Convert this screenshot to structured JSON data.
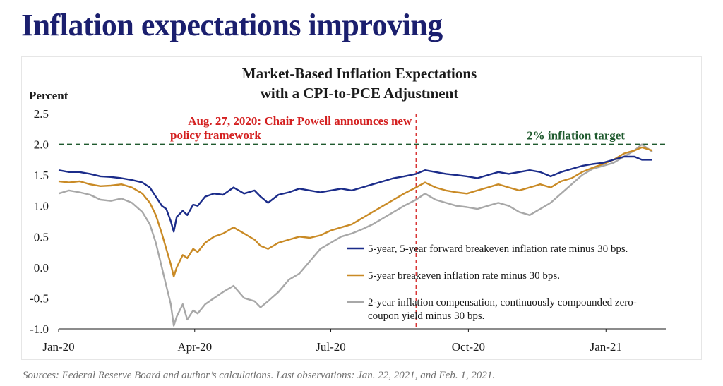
{
  "page": {
    "title": "Inflation expectations improving",
    "source": "Sources: Federal Reserve Board and author’s calculations. Last observations: Jan. 22, 2021, and Feb. 1, 2021."
  },
  "chart_data": {
    "type": "line",
    "title": "Market-Based Inflation Expectations",
    "subtitle": "with a CPI-to-PCE Adjustment",
    "ylabel": "Percent",
    "xlabel": "",
    "ylim": [
      -1.0,
      2.5
    ],
    "yticks": [
      "2.5",
      "2.0",
      "1.5",
      "1.0",
      "0.5",
      "0.0",
      "-0.5",
      "-1.0"
    ],
    "xlim": [
      "2020-01-01",
      "2021-02-10"
    ],
    "xticks": [
      {
        "label": "Jan-20",
        "date": "2020-01-01"
      },
      {
        "label": "Apr-20",
        "date": "2020-04-01"
      },
      {
        "label": "Jul-20",
        "date": "2020-07-01"
      },
      {
        "label": "Oct-20",
        "date": "2020-10-01"
      },
      {
        "label": "Jan-21",
        "date": "2021-01-01"
      }
    ],
    "grid": false,
    "legend_position": "bottom-right",
    "reference_lines": [
      {
        "kind": "horizontal",
        "y": 2.0,
        "label": "2% inflation target",
        "color": "#1f5a2e",
        "style": "dashed"
      },
      {
        "kind": "vertical",
        "x": "2020-08-27",
        "label_line1": "Aug. 27, 2020: Chair Powell announces new",
        "label_line2": "policy framework",
        "color": "#d42020",
        "style": "dashed"
      }
    ],
    "series": [
      {
        "name": "5-year, 5-year forward breakeven inflation rate minus 30 bps.",
        "color": "#1b2c8a",
        "points": [
          [
            "2020-01-01",
            1.58
          ],
          [
            "2020-01-08",
            1.55
          ],
          [
            "2020-01-15",
            1.55
          ],
          [
            "2020-01-22",
            1.52
          ],
          [
            "2020-01-29",
            1.48
          ],
          [
            "2020-02-05",
            1.47
          ],
          [
            "2020-02-12",
            1.45
          ],
          [
            "2020-02-19",
            1.42
          ],
          [
            "2020-02-26",
            1.38
          ],
          [
            "2020-03-02",
            1.3
          ],
          [
            "2020-03-06",
            1.15
          ],
          [
            "2020-03-10",
            1.0
          ],
          [
            "2020-03-13",
            0.95
          ],
          [
            "2020-03-16",
            0.75
          ],
          [
            "2020-03-18",
            0.58
          ],
          [
            "2020-03-20",
            0.82
          ],
          [
            "2020-03-24",
            0.92
          ],
          [
            "2020-03-27",
            0.85
          ],
          [
            "2020-03-31",
            1.02
          ],
          [
            "2020-04-03",
            1.0
          ],
          [
            "2020-04-08",
            1.15
          ],
          [
            "2020-04-14",
            1.2
          ],
          [
            "2020-04-20",
            1.18
          ],
          [
            "2020-04-27",
            1.3
          ],
          [
            "2020-05-04",
            1.2
          ],
          [
            "2020-05-11",
            1.25
          ],
          [
            "2020-05-15",
            1.15
          ],
          [
            "2020-05-20",
            1.05
          ],
          [
            "2020-05-27",
            1.18
          ],
          [
            "2020-06-03",
            1.22
          ],
          [
            "2020-06-10",
            1.28
          ],
          [
            "2020-06-17",
            1.25
          ],
          [
            "2020-06-24",
            1.22
          ],
          [
            "2020-07-01",
            1.25
          ],
          [
            "2020-07-08",
            1.28
          ],
          [
            "2020-07-15",
            1.25
          ],
          [
            "2020-07-22",
            1.3
          ],
          [
            "2020-07-29",
            1.35
          ],
          [
            "2020-08-05",
            1.4
          ],
          [
            "2020-08-12",
            1.45
          ],
          [
            "2020-08-19",
            1.48
          ],
          [
            "2020-08-27",
            1.52
          ],
          [
            "2020-09-02",
            1.58
          ],
          [
            "2020-09-09",
            1.55
          ],
          [
            "2020-09-16",
            1.52
          ],
          [
            "2020-09-23",
            1.5
          ],
          [
            "2020-09-30",
            1.48
          ],
          [
            "2020-10-07",
            1.45
          ],
          [
            "2020-10-14",
            1.5
          ],
          [
            "2020-10-21",
            1.55
          ],
          [
            "2020-10-28",
            1.52
          ],
          [
            "2020-11-04",
            1.55
          ],
          [
            "2020-11-11",
            1.58
          ],
          [
            "2020-11-18",
            1.55
          ],
          [
            "2020-11-25",
            1.48
          ],
          [
            "2020-12-02",
            1.55
          ],
          [
            "2020-12-09",
            1.6
          ],
          [
            "2020-12-16",
            1.65
          ],
          [
            "2020-12-23",
            1.68
          ],
          [
            "2020-12-30",
            1.7
          ],
          [
            "2021-01-06",
            1.75
          ],
          [
            "2021-01-13",
            1.8
          ],
          [
            "2021-01-20",
            1.8
          ],
          [
            "2021-01-25",
            1.75
          ],
          [
            "2021-02-01",
            1.75
          ]
        ]
      },
      {
        "name": "5-year breakeven inflation rate minus 30 bps.",
        "color": "#c98a25",
        "points": [
          [
            "2020-01-01",
            1.4
          ],
          [
            "2020-01-08",
            1.38
          ],
          [
            "2020-01-15",
            1.4
          ],
          [
            "2020-01-22",
            1.35
          ],
          [
            "2020-01-29",
            1.32
          ],
          [
            "2020-02-05",
            1.33
          ],
          [
            "2020-02-12",
            1.35
          ],
          [
            "2020-02-19",
            1.3
          ],
          [
            "2020-02-26",
            1.2
          ],
          [
            "2020-03-02",
            1.05
          ],
          [
            "2020-03-06",
            0.85
          ],
          [
            "2020-03-10",
            0.55
          ],
          [
            "2020-03-13",
            0.3
          ],
          [
            "2020-03-16",
            0.05
          ],
          [
            "2020-03-18",
            -0.15
          ],
          [
            "2020-03-20",
            0.0
          ],
          [
            "2020-03-24",
            0.2
          ],
          [
            "2020-03-27",
            0.15
          ],
          [
            "2020-03-31",
            0.3
          ],
          [
            "2020-04-03",
            0.25
          ],
          [
            "2020-04-08",
            0.4
          ],
          [
            "2020-04-14",
            0.5
          ],
          [
            "2020-04-20",
            0.55
          ],
          [
            "2020-04-27",
            0.65
          ],
          [
            "2020-05-04",
            0.55
          ],
          [
            "2020-05-11",
            0.45
          ],
          [
            "2020-05-15",
            0.35
          ],
          [
            "2020-05-20",
            0.3
          ],
          [
            "2020-05-27",
            0.4
          ],
          [
            "2020-06-03",
            0.45
          ],
          [
            "2020-06-10",
            0.5
          ],
          [
            "2020-06-17",
            0.48
          ],
          [
            "2020-06-24",
            0.52
          ],
          [
            "2020-07-01",
            0.6
          ],
          [
            "2020-07-08",
            0.65
          ],
          [
            "2020-07-15",
            0.7
          ],
          [
            "2020-07-22",
            0.8
          ],
          [
            "2020-07-29",
            0.9
          ],
          [
            "2020-08-05",
            1.0
          ],
          [
            "2020-08-12",
            1.1
          ],
          [
            "2020-08-19",
            1.2
          ],
          [
            "2020-08-27",
            1.3
          ],
          [
            "2020-09-02",
            1.38
          ],
          [
            "2020-09-09",
            1.3
          ],
          [
            "2020-09-16",
            1.25
          ],
          [
            "2020-09-23",
            1.22
          ],
          [
            "2020-09-30",
            1.2
          ],
          [
            "2020-10-07",
            1.25
          ],
          [
            "2020-10-14",
            1.3
          ],
          [
            "2020-10-21",
            1.35
          ],
          [
            "2020-10-28",
            1.3
          ],
          [
            "2020-11-04",
            1.25
          ],
          [
            "2020-11-11",
            1.3
          ],
          [
            "2020-11-18",
            1.35
          ],
          [
            "2020-11-25",
            1.3
          ],
          [
            "2020-12-02",
            1.4
          ],
          [
            "2020-12-09",
            1.45
          ],
          [
            "2020-12-16",
            1.55
          ],
          [
            "2020-12-23",
            1.62
          ],
          [
            "2020-12-30",
            1.68
          ],
          [
            "2021-01-06",
            1.75
          ],
          [
            "2021-01-13",
            1.85
          ],
          [
            "2021-01-20",
            1.9
          ],
          [
            "2021-01-25",
            1.95
          ],
          [
            "2021-02-01",
            1.9
          ]
        ]
      },
      {
        "name": "2-year inflation compensation, continuously compounded zero-coupon yield minus 30 bps.",
        "label_line1": "2-year inflation compensation, continuously compounded zero-",
        "label_line2": "coupon yield minus 30 bps.",
        "color": "#a8a8a8",
        "points": [
          [
            "2020-01-01",
            1.2
          ],
          [
            "2020-01-08",
            1.25
          ],
          [
            "2020-01-15",
            1.22
          ],
          [
            "2020-01-22",
            1.18
          ],
          [
            "2020-01-29",
            1.1
          ],
          [
            "2020-02-05",
            1.08
          ],
          [
            "2020-02-12",
            1.12
          ],
          [
            "2020-02-19",
            1.05
          ],
          [
            "2020-02-26",
            0.9
          ],
          [
            "2020-03-02",
            0.7
          ],
          [
            "2020-03-06",
            0.4
          ],
          [
            "2020-03-10",
            0.0
          ],
          [
            "2020-03-13",
            -0.3
          ],
          [
            "2020-03-16",
            -0.6
          ],
          [
            "2020-03-18",
            -0.95
          ],
          [
            "2020-03-20",
            -0.8
          ],
          [
            "2020-03-24",
            -0.6
          ],
          [
            "2020-03-27",
            -0.85
          ],
          [
            "2020-03-31",
            -0.7
          ],
          [
            "2020-04-03",
            -0.75
          ],
          [
            "2020-04-08",
            -0.6
          ],
          [
            "2020-04-14",
            -0.5
          ],
          [
            "2020-04-20",
            -0.4
          ],
          [
            "2020-04-27",
            -0.3
          ],
          [
            "2020-05-04",
            -0.5
          ],
          [
            "2020-05-11",
            -0.55
          ],
          [
            "2020-05-15",
            -0.65
          ],
          [
            "2020-05-20",
            -0.55
          ],
          [
            "2020-05-27",
            -0.4
          ],
          [
            "2020-06-03",
            -0.2
          ],
          [
            "2020-06-10",
            -0.1
          ],
          [
            "2020-06-17",
            0.1
          ],
          [
            "2020-06-24",
            0.3
          ],
          [
            "2020-07-01",
            0.4
          ],
          [
            "2020-07-08",
            0.5
          ],
          [
            "2020-07-15",
            0.55
          ],
          [
            "2020-07-22",
            0.62
          ],
          [
            "2020-07-29",
            0.7
          ],
          [
            "2020-08-05",
            0.8
          ],
          [
            "2020-08-12",
            0.9
          ],
          [
            "2020-08-19",
            1.0
          ],
          [
            "2020-08-27",
            1.1
          ],
          [
            "2020-09-02",
            1.2
          ],
          [
            "2020-09-09",
            1.1
          ],
          [
            "2020-09-16",
            1.05
          ],
          [
            "2020-09-23",
            1.0
          ],
          [
            "2020-09-30",
            0.98
          ],
          [
            "2020-10-07",
            0.95
          ],
          [
            "2020-10-14",
            1.0
          ],
          [
            "2020-10-21",
            1.05
          ],
          [
            "2020-10-28",
            1.0
          ],
          [
            "2020-11-04",
            0.9
          ],
          [
            "2020-11-11",
            0.85
          ],
          [
            "2020-11-18",
            0.95
          ],
          [
            "2020-11-25",
            1.05
          ],
          [
            "2020-12-02",
            1.2
          ],
          [
            "2020-12-09",
            1.35
          ],
          [
            "2020-12-16",
            1.5
          ],
          [
            "2020-12-23",
            1.6
          ],
          [
            "2020-12-30",
            1.65
          ],
          [
            "2021-01-06",
            1.7
          ],
          [
            "2021-01-13",
            1.8
          ],
          [
            "2021-01-20",
            1.9
          ],
          [
            "2021-01-25",
            2.0
          ],
          [
            "2021-02-01",
            1.88
          ]
        ]
      }
    ]
  }
}
